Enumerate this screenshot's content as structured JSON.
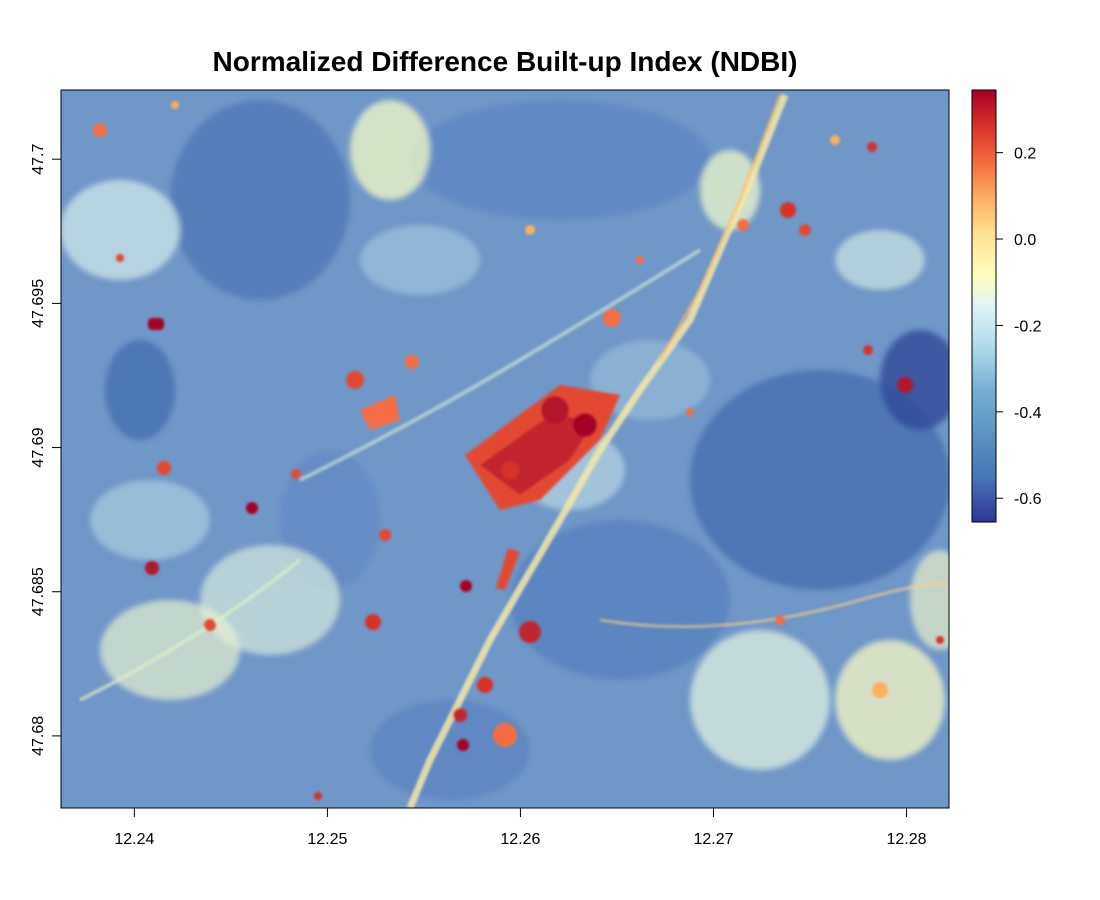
{
  "title": "Normalized Difference Built-up Index (NDBI)",
  "map": {
    "x_ticks": [
      "12.24",
      "12.25",
      "12.26",
      "12.27",
      "12.28"
    ],
    "y_ticks": [
      "47.7",
      "47.695",
      "47.69",
      "47.685",
      "47.68"
    ],
    "x_values": [
      12.24,
      12.25,
      12.26,
      12.27,
      12.28
    ],
    "y_values": [
      47.7,
      47.695,
      47.69,
      47.685,
      47.68
    ],
    "x_range": [
      12.2362,
      12.2822
    ],
    "y_range": [
      47.6775,
      47.7024
    ]
  },
  "legend": {
    "ticks": [
      "0.2",
      "0.0",
      "-0.2",
      "-0.4",
      "-0.6"
    ],
    "values": [
      0.2,
      0.0,
      -0.2,
      -0.4,
      -0.6
    ],
    "range": [
      -0.655,
      0.345
    ],
    "colors": [
      "#313695",
      "#4575b4",
      "#74add1",
      "#abd9e9",
      "#e0f3f8",
      "#ffffbf",
      "#fee090",
      "#fdae61",
      "#f46d43",
      "#d73027",
      "#a50026"
    ]
  }
}
